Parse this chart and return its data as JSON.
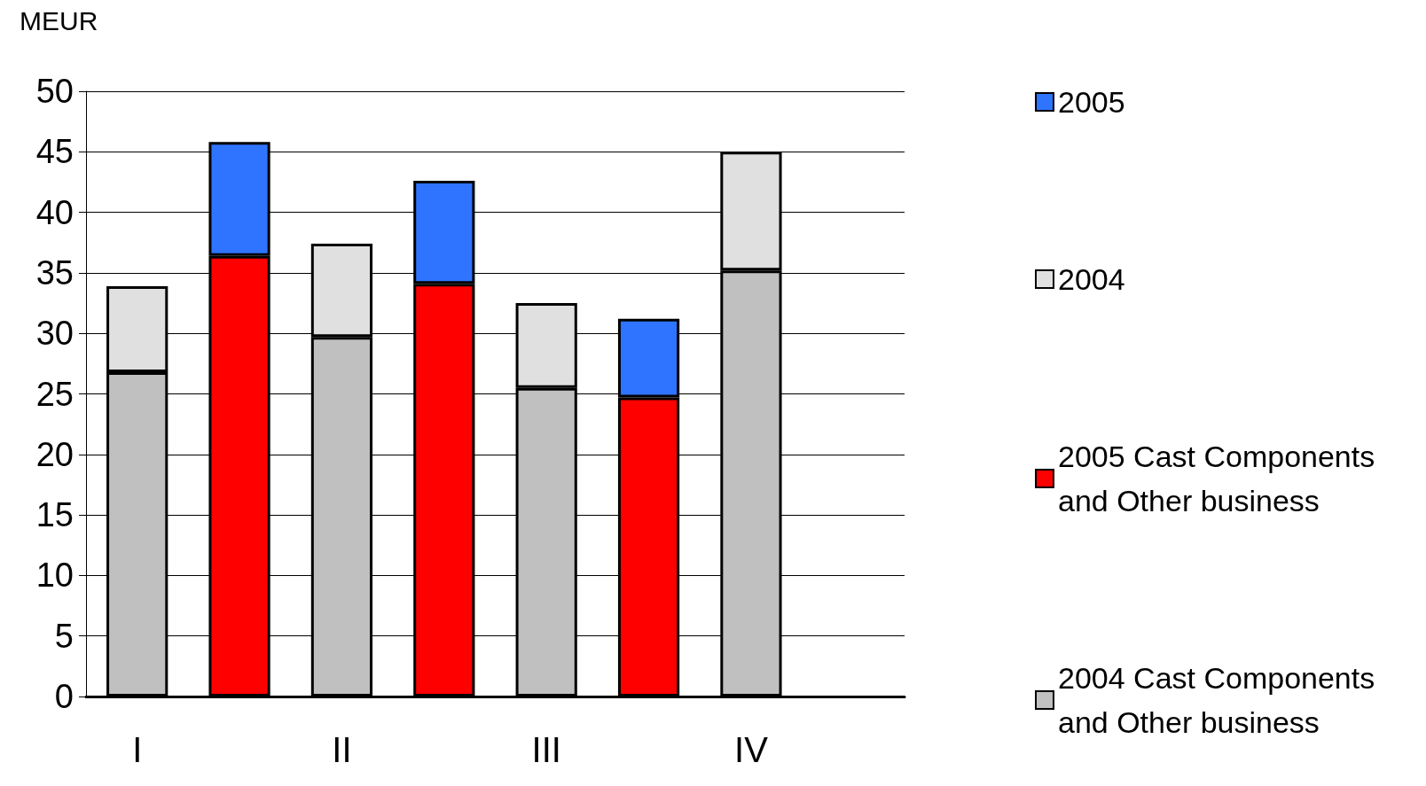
{
  "chart_data": {
    "type": "bar",
    "stacked": true,
    "ylabel": "MEUR",
    "categories": [
      "I",
      null,
      "II",
      null,
      "III",
      null,
      "IV",
      null
    ],
    "series": [
      {
        "name": "2004 Cast Components and Other business",
        "color": "#c0c0c0",
        "values": [
          26.8,
          null,
          29.7,
          null,
          25.5,
          null,
          35.2,
          null
        ]
      },
      {
        "name": "2005 Cast Components and Other business",
        "color": "#ff0000",
        "values": [
          null,
          36.4,
          null,
          34.1,
          null,
          24.7,
          null,
          null
        ]
      },
      {
        "name": "2004",
        "color": "#e0e0e0",
        "values": [
          7.1,
          null,
          7.7,
          null,
          7.0,
          null,
          9.8,
          null
        ]
      },
      {
        "name": "2005",
        "color": "#2f74ff",
        "values": [
          null,
          9.4,
          null,
          8.5,
          null,
          6.5,
          null,
          null
        ]
      }
    ],
    "ylim": [
      0,
      50
    ],
    "yticks": [
      0,
      5,
      10,
      15,
      20,
      25,
      30,
      35,
      40,
      45,
      50
    ],
    "grid": "y",
    "legend": "right"
  }
}
